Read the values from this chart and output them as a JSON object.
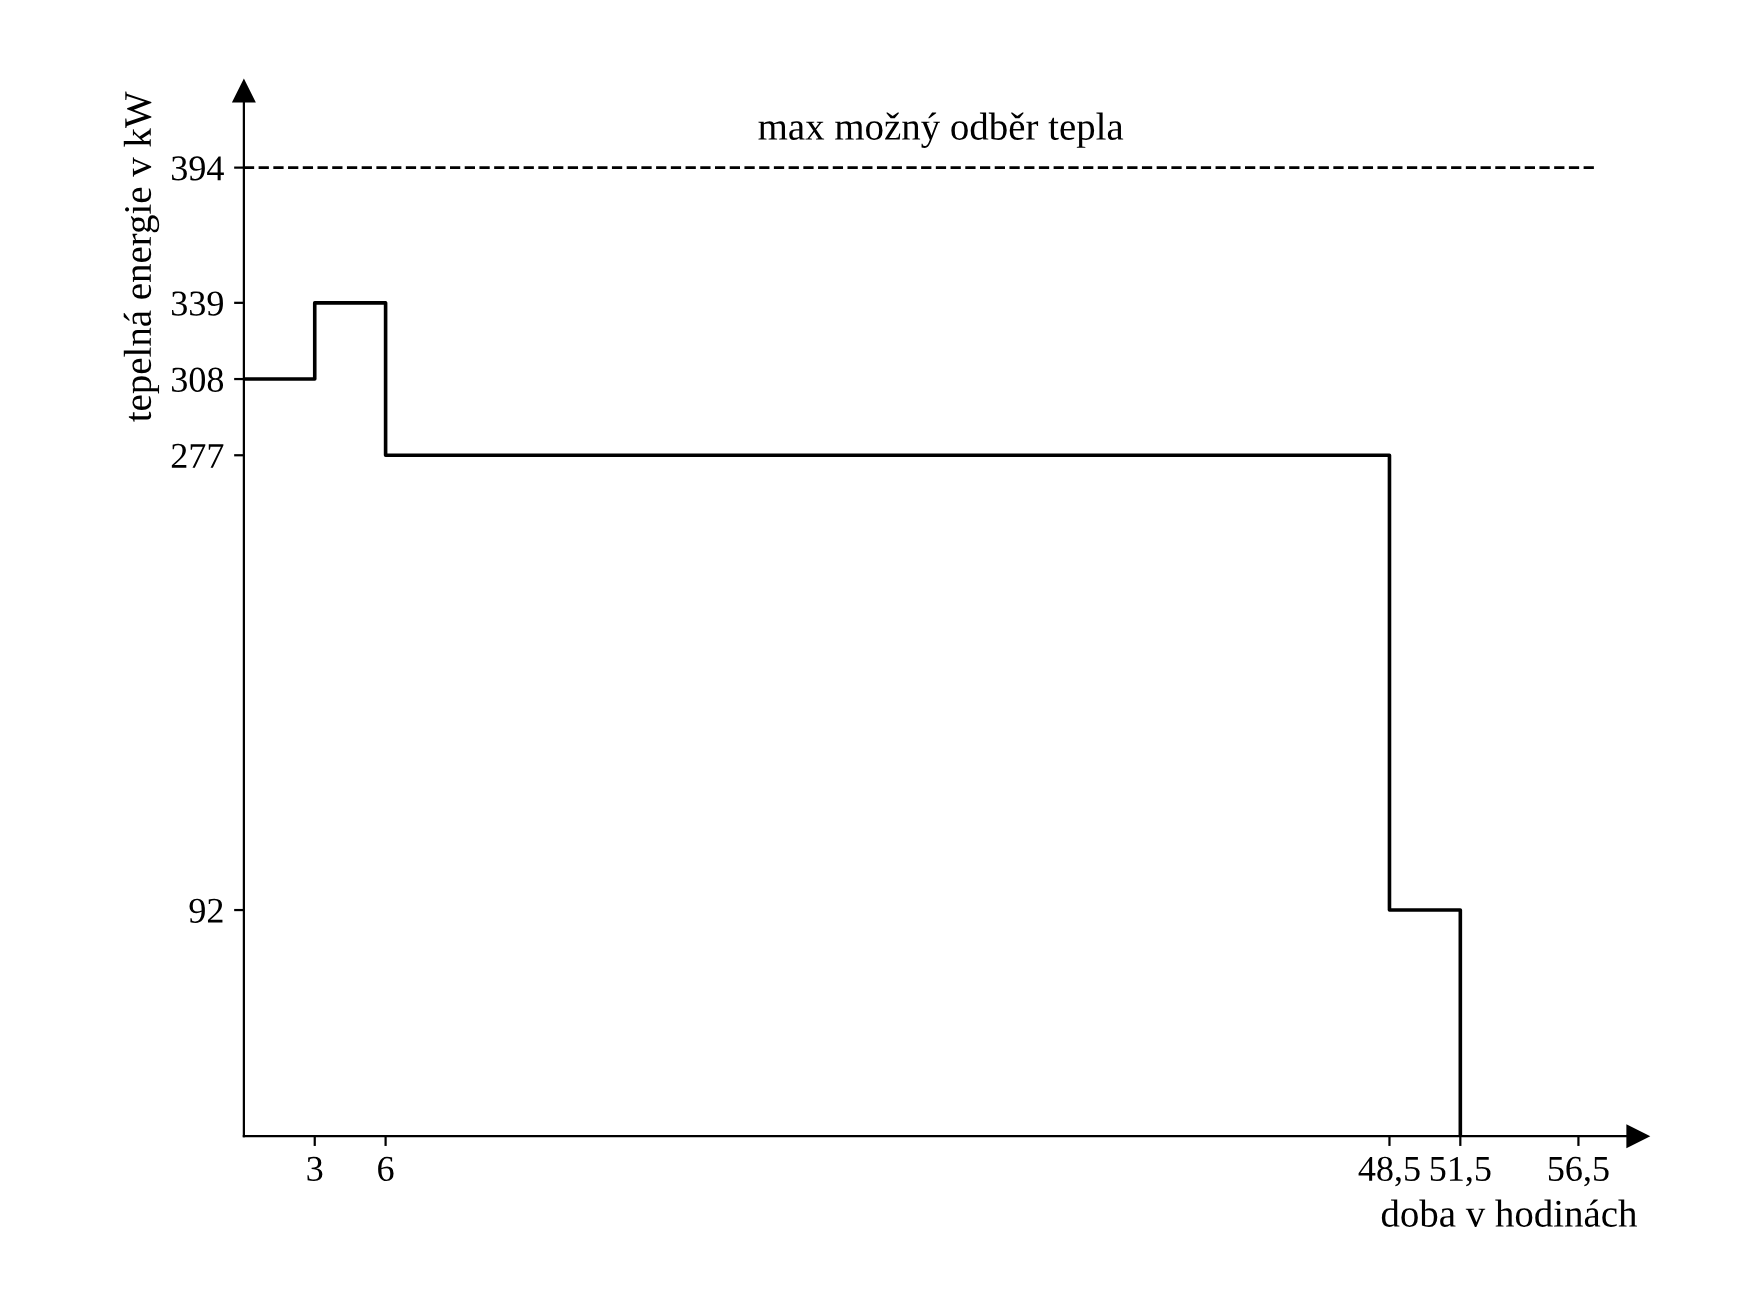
{
  "chart_data": {
    "type": "step",
    "xlabel": "doba v hodinách",
    "ylabel": "tepelná energie v kW",
    "x": [
      0,
      3,
      6,
      48.5,
      51.5
    ],
    "series": [
      {
        "color": "#000000",
        "values": [
          308,
          339,
          277,
          92,
          0
        ]
      }
    ],
    "xlim": [
      0,
      59
    ],
    "ylim": [
      0,
      425
    ],
    "xticks": [
      3,
      6,
      {
        "value": 48.5,
        "label": "48,5"
      },
      {
        "value": 51.5,
        "label": "51,5"
      },
      {
        "value": 56.5,
        "label": "56,5"
      }
    ],
    "yticks": [
      92,
      277,
      308,
      339,
      394
    ],
    "ref_lines": [
      {
        "axis": "y",
        "value": 394,
        "label": "max možný odběr tepla",
        "color": "#000000",
        "line_style": "dashed"
      }
    ],
    "grid": false,
    "legend": false,
    "marker": "none",
    "line_style": "solid"
  }
}
